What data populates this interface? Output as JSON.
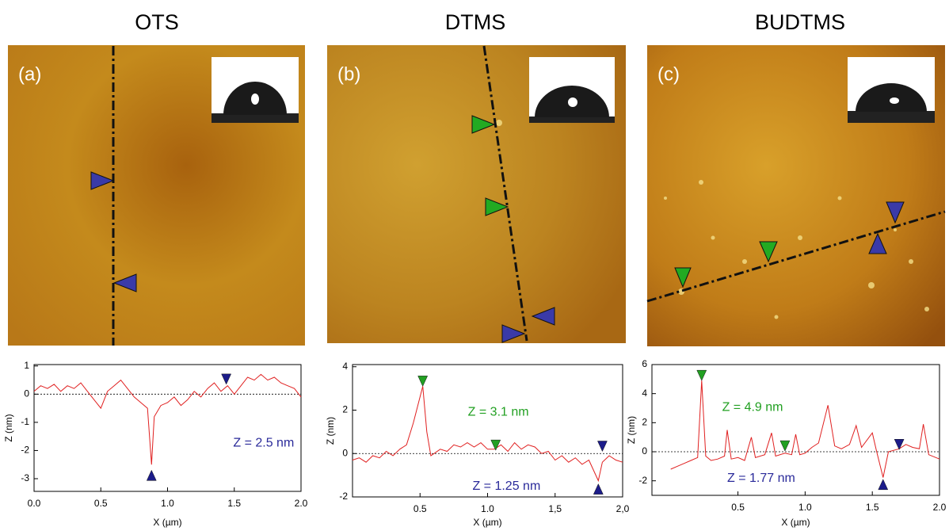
{
  "chart_data": [
    {
      "type": "line",
      "title": "OTS",
      "panel_label": "(a)",
      "xlabel": "X (µm)",
      "ylabel": "Z (nm)",
      "xlim": [
        0,
        2
      ],
      "ylim": [
        -3.45,
        1.05
      ],
      "xticks": [
        {
          "value": 0,
          "label": "0.0"
        },
        {
          "value": 0.5,
          "label": "0.5"
        },
        {
          "value": 1,
          "label": "1.0"
        },
        {
          "value": 1.5,
          "label": "1.5"
        },
        {
          "value": 2,
          "label": "2.0"
        }
      ],
      "yticks": [
        1,
        0,
        -1,
        -2,
        -3
      ],
      "x": [
        0,
        0.05,
        0.1,
        0.15,
        0.2,
        0.25,
        0.3,
        0.35,
        0.4,
        0.45,
        0.5,
        0.55,
        0.6,
        0.65,
        0.7,
        0.75,
        0.8,
        0.85,
        0.88,
        0.9,
        0.95,
        1.0,
        1.05,
        1.1,
        1.15,
        1.2,
        1.25,
        1.3,
        1.35,
        1.4,
        1.45,
        1.5,
        1.55,
        1.6,
        1.65,
        1.7,
        1.75,
        1.8,
        1.85,
        1.9,
        1.95,
        2.0
      ],
      "series": [
        {
          "color": "#e02020",
          "values": [
            0.1,
            0.3,
            0.2,
            0.35,
            0.1,
            0.3,
            0.2,
            0.4,
            0.1,
            -0.2,
            -0.5,
            0.1,
            0.3,
            0.5,
            0.2,
            -0.1,
            -0.3,
            -0.5,
            -2.5,
            -0.8,
            -0.4,
            -0.3,
            -0.1,
            -0.4,
            -0.2,
            0.1,
            -0.1,
            0.2,
            0.4,
            0.1,
            0.3,
            0,
            0.3,
            0.6,
            0.5,
            0.7,
            0.5,
            0.6,
            0.4,
            0.3,
            0.2,
            -0.1
          ]
        }
      ],
      "markers": [
        {
          "x": 1.44,
          "y": 0.35,
          "dir": "down",
          "color": "#1c1c8a"
        },
        {
          "x": 0.88,
          "y": -2.7,
          "dir": "up",
          "color": "#1c1c8a"
        }
      ],
      "annotations": [
        {
          "text": "Z = 2.5 nm",
          "color": "#2a2a9a"
        }
      ]
    },
    {
      "type": "line",
      "title": "DTMS",
      "panel_label": "(b)",
      "xlabel": "X (µm)",
      "ylabel": "Z (nm)",
      "xlim": [
        0,
        2
      ],
      "ylim": [
        -2,
        4.1
      ],
      "xticks": [
        {
          "value": 0.5,
          "label": "0.5"
        },
        {
          "value": 1,
          "label": "1.0"
        },
        {
          "value": 1.5,
          "label": "1,5"
        },
        {
          "value": 2,
          "label": "2,0"
        }
      ],
      "yticks": [
        -2,
        0,
        2,
        4
      ],
      "x": [
        0,
        0.05,
        0.1,
        0.15,
        0.2,
        0.25,
        0.3,
        0.35,
        0.4,
        0.45,
        0.52,
        0.55,
        0.58,
        0.65,
        0.7,
        0.75,
        0.8,
        0.85,
        0.9,
        0.95,
        1.0,
        1.05,
        1.1,
        1.15,
        1.2,
        1.25,
        1.3,
        1.35,
        1.4,
        1.45,
        1.5,
        1.55,
        1.6,
        1.65,
        1.7,
        1.75,
        1.82,
        1.85,
        1.9,
        1.95,
        2.0
      ],
      "series": [
        {
          "color": "#e02020",
          "values": [
            -0.3,
            -0.2,
            -0.4,
            -0.1,
            -0.2,
            0.1,
            -0.1,
            0.2,
            0.4,
            1.4,
            3.1,
            1.0,
            -0.1,
            0.2,
            0.1,
            0.4,
            0.3,
            0.5,
            0.3,
            0.5,
            0.2,
            0.2,
            0.4,
            0.1,
            0.5,
            0.2,
            0.4,
            0.3,
            0,
            0.1,
            -0.3,
            -0.1,
            -0.4,
            -0.2,
            -0.5,
            -0.3,
            -1.25,
            -0.4,
            -0.1,
            -0.3,
            -0.4
          ]
        }
      ],
      "markers": [
        {
          "x": 0.52,
          "y": 3.1,
          "dir": "down",
          "color": "#22a022"
        },
        {
          "x": 1.06,
          "y": 0.15,
          "dir": "down",
          "color": "#22a022"
        },
        {
          "x": 1.85,
          "y": 0.1,
          "dir": "down",
          "color": "#1c1c8a"
        },
        {
          "x": 1.82,
          "y": -1.4,
          "dir": "up",
          "color": "#1c1c8a"
        }
      ],
      "annotations": [
        {
          "text": "Z = 3.1 nm",
          "color": "#22a022"
        },
        {
          "text": "Z = 1.25 nm",
          "color": "#2a2a9a"
        }
      ]
    },
    {
      "type": "line",
      "title": "BUDTMS",
      "panel_label": "(c)",
      "xlabel": "X (µm)",
      "ylabel": "Z (nm)",
      "xlim": [
        -0.14,
        2
      ],
      "ylim": [
        -3,
        6
      ],
      "xticks": [
        {
          "value": 0.5,
          "label": "0.5"
        },
        {
          "value": 1,
          "label": "1.0"
        },
        {
          "value": 1.5,
          "label": "1.5"
        },
        {
          "value": 2,
          "label": "2.0"
        }
      ],
      "yticks": [
        -2,
        0,
        2,
        4,
        6
      ],
      "x": [
        0,
        0.05,
        0.1,
        0.15,
        0.2,
        0.23,
        0.26,
        0.3,
        0.35,
        0.4,
        0.42,
        0.45,
        0.5,
        0.55,
        0.6,
        0.63,
        0.7,
        0.75,
        0.78,
        0.85,
        0.9,
        0.93,
        0.96,
        1.0,
        1.05,
        1.1,
        1.17,
        1.22,
        1.27,
        1.33,
        1.38,
        1.42,
        1.5,
        1.53,
        1.58,
        1.62,
        1.7,
        1.75,
        1.8,
        1.85,
        1.88,
        1.92,
        2.0
      ],
      "series": [
        {
          "color": "#e02020",
          "values": [
            -1.2,
            -1.0,
            -0.8,
            -0.6,
            -0.4,
            4.9,
            -0.3,
            -0.6,
            -0.5,
            -0.3,
            1.5,
            -0.5,
            -0.4,
            -0.6,
            1.0,
            -0.4,
            -0.2,
            1.3,
            -0.3,
            -0.1,
            -0.2,
            1.2,
            -0.2,
            -0.1,
            0.3,
            0.6,
            3.2,
            0.4,
            0.2,
            0.5,
            1.8,
            0.3,
            1.3,
            0.1,
            -1.77,
            0,
            0.2,
            0.5,
            0.3,
            0.2,
            1.9,
            -0.2,
            -0.5
          ]
        }
      ],
      "markers": [
        {
          "x": 0.23,
          "y": 4.9,
          "dir": "down",
          "color": "#22a022"
        },
        {
          "x": 0.85,
          "y": 0.05,
          "dir": "down",
          "color": "#22a022"
        },
        {
          "x": 1.7,
          "y": 0.15,
          "dir": "down",
          "color": "#1c1c8a"
        },
        {
          "x": 1.58,
          "y": -1.9,
          "dir": "up",
          "color": "#1c1c8a"
        }
      ],
      "annotations": [
        {
          "text": "Z = 4.9 nm",
          "color": "#22a022"
        },
        {
          "text": "Z = 1.77 nm",
          "color": "#2a2a9a"
        }
      ]
    }
  ]
}
